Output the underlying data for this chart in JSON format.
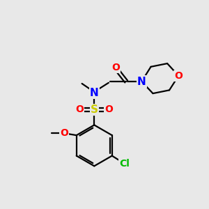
{
  "bg_color": "#e8e8e8",
  "bond_color": "#000000",
  "atom_colors": {
    "O": "#ff0000",
    "N": "#0000ff",
    "S": "#cccc00",
    "Cl": "#00bb00",
    "C": "#000000"
  },
  "figsize": [
    3.0,
    3.0
  ],
  "dpi": 100
}
